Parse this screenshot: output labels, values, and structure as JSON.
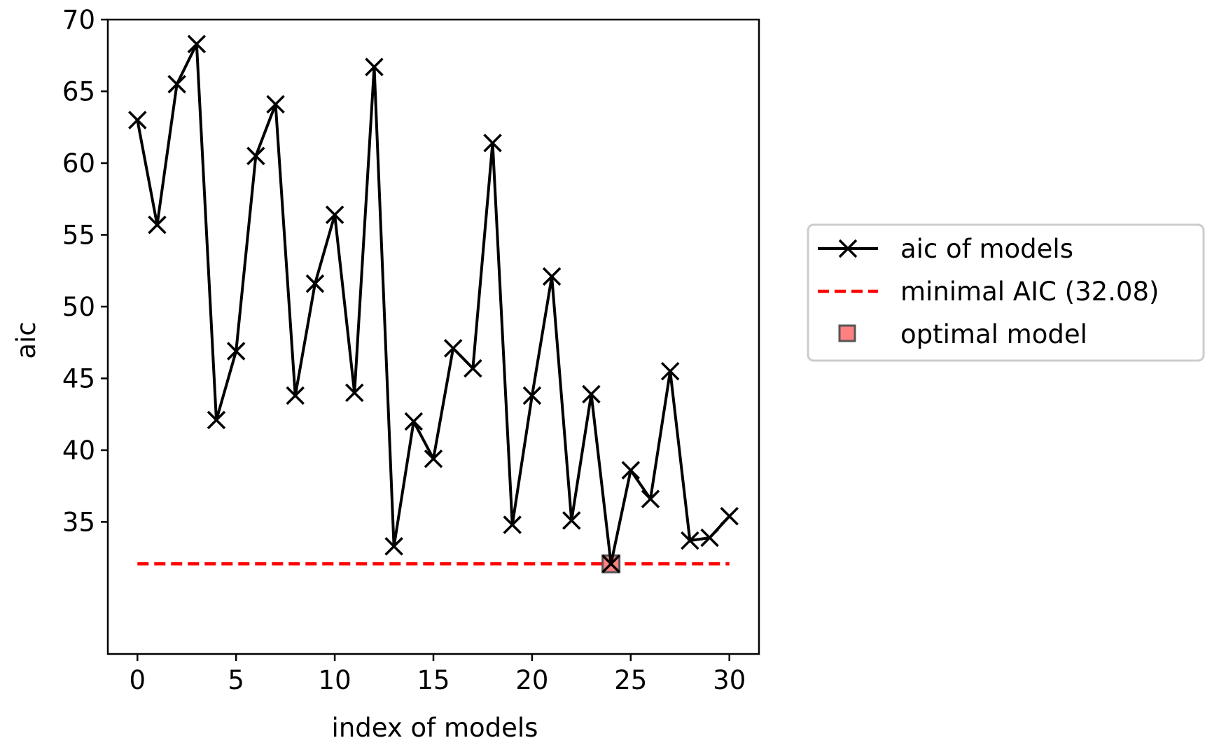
{
  "chart_data": {
    "type": "line",
    "title": "",
    "xlabel": "index of models",
    "ylabel": "aic",
    "xlim": [
      -1.5,
      31.5
    ],
    "ylim": [
      25.8,
      70.0
    ],
    "xticks": [
      0,
      5,
      10,
      15,
      20,
      25,
      30
    ],
    "yticks": [
      35,
      40,
      45,
      50,
      55,
      60,
      65,
      70
    ],
    "grid": false,
    "legend_position": "right-center-outside",
    "series": [
      {
        "name": "aic of models",
        "style": "solid",
        "marker": "x",
        "color": "#000000",
        "x": [
          0,
          1,
          2,
          3,
          4,
          5,
          6,
          7,
          8,
          9,
          10,
          11,
          12,
          13,
          14,
          15,
          16,
          17,
          18,
          19,
          20,
          21,
          22,
          23,
          24,
          25,
          26,
          27,
          28,
          29,
          30
        ],
        "values": [
          63.0,
          55.7,
          65.5,
          68.3,
          42.1,
          46.9,
          60.5,
          64.1,
          43.8,
          51.6,
          56.4,
          44.0,
          66.7,
          33.3,
          42.0,
          39.4,
          47.1,
          45.7,
          61.4,
          34.8,
          43.8,
          52.1,
          35.1,
          43.9,
          32.08,
          38.6,
          36.6,
          45.5,
          33.7,
          33.9,
          35.4
        ]
      },
      {
        "name": "minimal AIC (32.08)",
        "style": "dashed",
        "color": "#ff0000",
        "x": [
          0,
          30
        ],
        "values": [
          32.08,
          32.08
        ]
      },
      {
        "name": "optimal model",
        "style": "marker-only",
        "marker": "square",
        "color": "#ff8080",
        "x": [
          24
        ],
        "values": [
          32.08
        ]
      }
    ]
  }
}
